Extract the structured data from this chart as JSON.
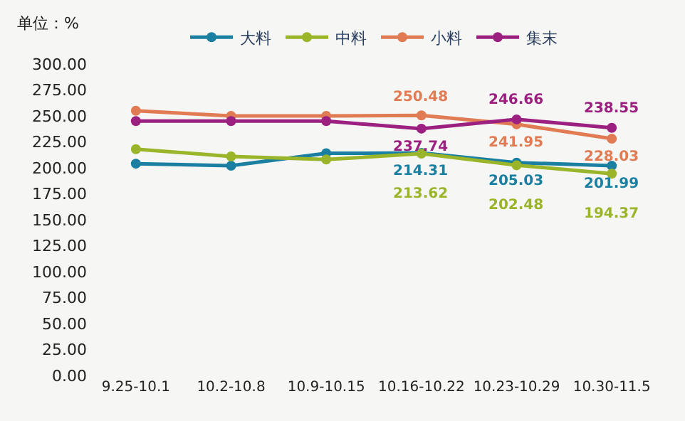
{
  "chart_data": {
    "type": "line",
    "annotations": [
      "单位：%"
    ],
    "categories": [
      "9.25-10.1",
      "10.2-10.8",
      "10.9-10.15",
      "10.16-10.22",
      "10.23-10.29",
      "10.30-11.5"
    ],
    "series": [
      {
        "name": "大料",
        "color": "#1a7fa0",
        "values": [
          204,
          202,
          214,
          214.31,
          205.03,
          201.99
        ],
        "value_labels": [
          null,
          null,
          null,
          "214.31",
          "205.03",
          "201.99"
        ]
      },
      {
        "name": "中料",
        "color": "#9ab52a",
        "values": [
          218,
          211,
          208,
          213.62,
          202.48,
          194.37
        ],
        "value_labels": [
          null,
          null,
          null,
          "213.62",
          "202.48",
          "194.37"
        ]
      },
      {
        "name": "小料",
        "color": "#e07b54",
        "values": [
          255,
          250,
          250,
          250.48,
          241.95,
          228.03
        ],
        "value_labels": [
          null,
          null,
          null,
          "250.48",
          "241.95",
          "228.03"
        ]
      },
      {
        "name": "集末",
        "color": "#9b2080",
        "values": [
          245,
          245,
          245,
          237.74,
          246.66,
          238.55
        ],
        "value_labels": [
          null,
          null,
          null,
          "237.74",
          "246.66",
          "238.55"
        ]
      }
    ],
    "ylim": [
      0,
      300
    ],
    "yticks": [
      {
        "value": 0,
        "label": "0.00"
      },
      {
        "value": 25,
        "label": "25.00"
      },
      {
        "value": 50,
        "label": "50.00"
      },
      {
        "value": 75,
        "label": "75.00"
      },
      {
        "value": 100,
        "label": "100.00"
      },
      {
        "value": 125,
        "label": "125.00"
      },
      {
        "value": 150,
        "label": "150.00"
      },
      {
        "value": 175,
        "label": "175.00"
      },
      {
        "value": 200,
        "label": "200.00"
      },
      {
        "value": 225,
        "label": "225.00"
      },
      {
        "value": 250,
        "label": "250.00"
      },
      {
        "value": 275,
        "label": "275.00"
      },
      {
        "value": 300,
        "label": "300.00"
      }
    ],
    "grid": false,
    "legend": "top",
    "marker": "circle",
    "line_style": "solid"
  }
}
